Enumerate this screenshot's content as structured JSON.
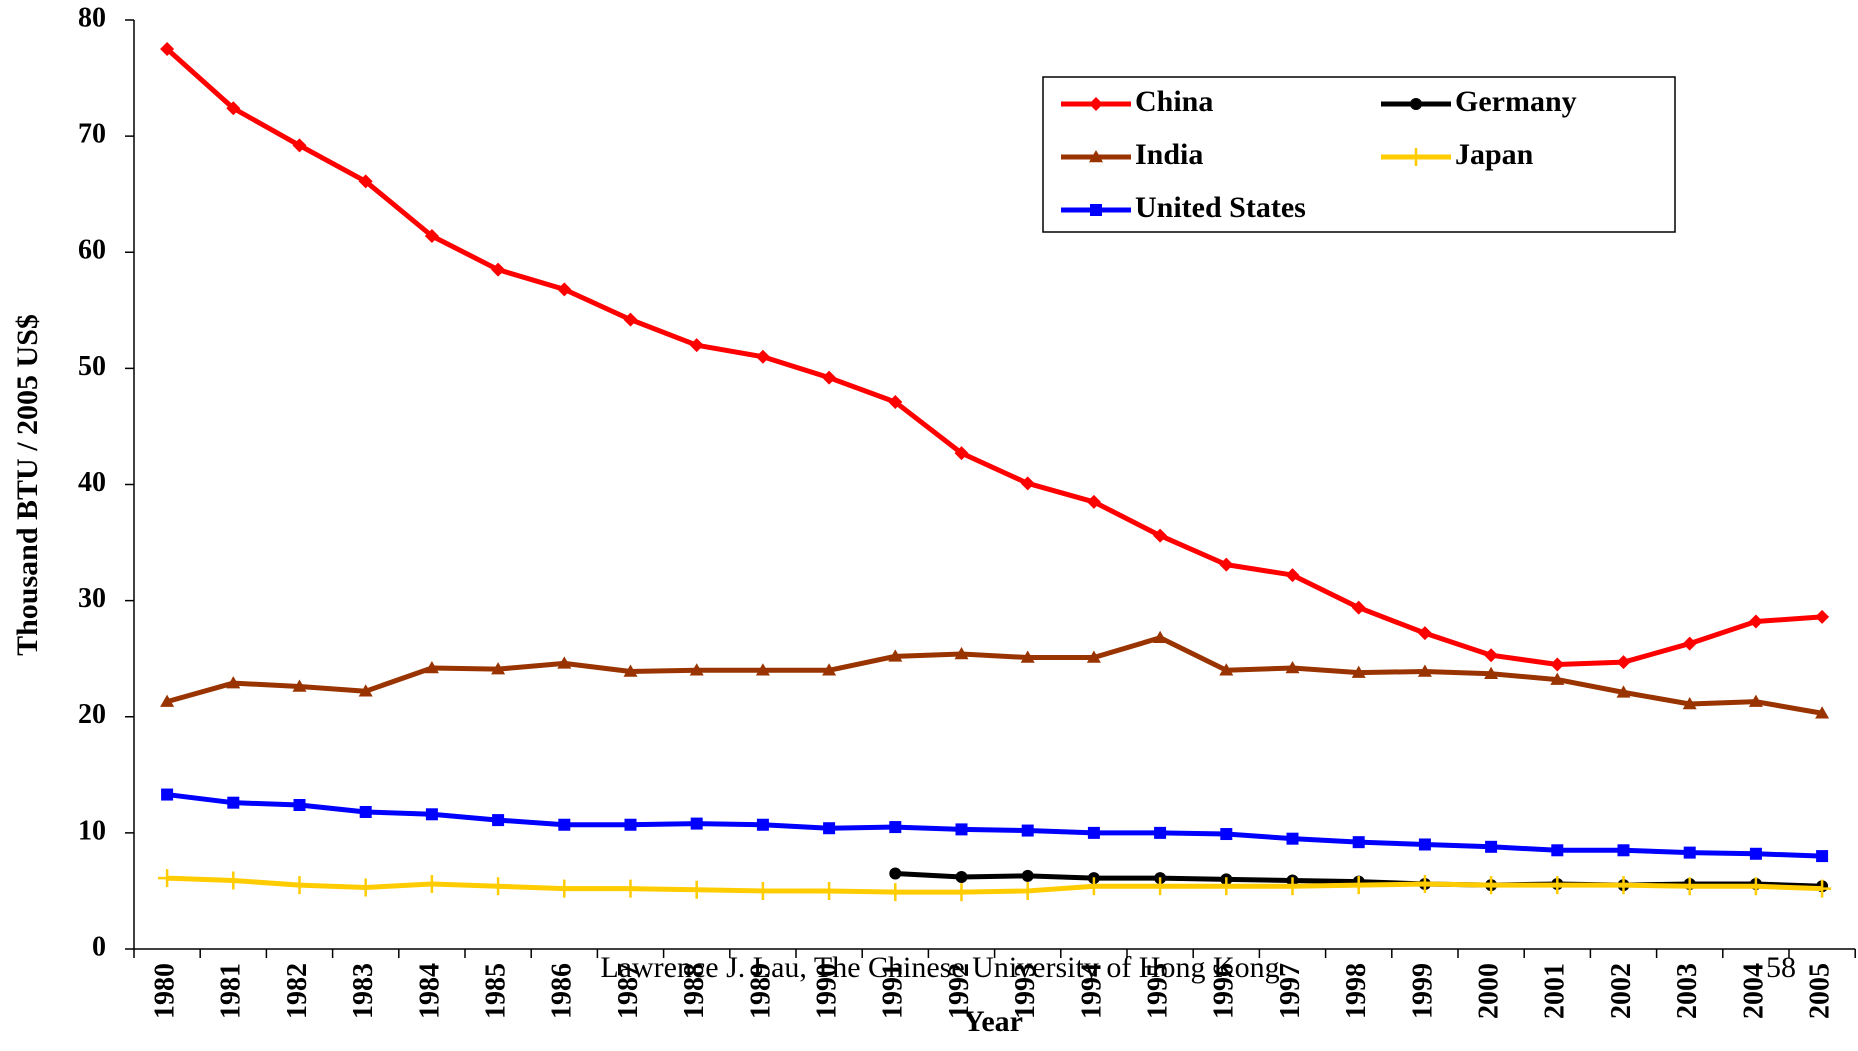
{
  "chart_data": {
    "type": "line",
    "y_label": "Thousand BTU / 2005 US$",
    "x_label": "Year",
    "footer": "Lawrence J. Lau, The Chinese University of Hong Kong",
    "page_number": "58",
    "categories": [
      "1980",
      "1981",
      "1982",
      "1983",
      "1984",
      "1985",
      "1986",
      "1987",
      "1988",
      "1989",
      "1990",
      "1991",
      "1992",
      "1993",
      "1994",
      "1995",
      "1996",
      "1997",
      "1998",
      "1999",
      "2000",
      "2001",
      "2002",
      "2003",
      "2004",
      "2005"
    ],
    "ylim": [
      0,
      80
    ],
    "yticks": [
      0,
      10,
      20,
      30,
      40,
      50,
      60,
      70,
      80
    ],
    "legend": "upper right",
    "series": [
      {
        "name": "China",
        "color": "#ff0000",
        "marker": "diamond",
        "values": [
          77.5,
          72.4,
          69.2,
          66.1,
          61.4,
          58.5,
          56.8,
          54.2,
          52.0,
          51.0,
          49.2,
          47.1,
          42.7,
          40.1,
          38.5,
          35.6,
          33.1,
          32.2,
          29.4,
          27.2,
          25.3,
          24.5,
          24.7,
          26.3,
          28.2,
          28.6
        ]
      },
      {
        "name": "Germany",
        "color": "#000000",
        "marker": "circle",
        "values": [
          null,
          null,
          null,
          null,
          null,
          null,
          null,
          null,
          null,
          null,
          null,
          6.5,
          6.2,
          6.3,
          6.1,
          6.1,
          6.0,
          5.9,
          5.8,
          5.6,
          5.5,
          5.6,
          5.5,
          5.6,
          5.6,
          5.4
        ]
      },
      {
        "name": "India",
        "color": "#993300",
        "marker": "triangle",
        "values": [
          21.3,
          22.9,
          22.6,
          22.2,
          24.2,
          24.1,
          24.6,
          23.9,
          24.0,
          24.0,
          24.0,
          25.2,
          25.4,
          25.1,
          25.1,
          26.8,
          24.0,
          24.2,
          23.8,
          23.9,
          23.7,
          23.2,
          22.1,
          21.1,
          21.3,
          20.3
        ]
      },
      {
        "name": "Japan",
        "color": "#ffcc00",
        "marker": "plus",
        "values": [
          6.1,
          5.9,
          5.5,
          5.3,
          5.6,
          5.4,
          5.2,
          5.2,
          5.1,
          5.0,
          5.0,
          4.9,
          4.9,
          5.0,
          5.4,
          5.4,
          5.4,
          5.4,
          5.5,
          5.6,
          5.5,
          5.5,
          5.5,
          5.4,
          5.4,
          5.2
        ]
      },
      {
        "name": "United States",
        "color": "#0000ff",
        "marker": "square",
        "values": [
          13.3,
          12.6,
          12.4,
          11.8,
          11.6,
          11.1,
          10.7,
          10.7,
          10.8,
          10.7,
          10.4,
          10.5,
          10.3,
          10.2,
          10.0,
          10.0,
          9.9,
          9.5,
          9.2,
          9.0,
          8.8,
          8.5,
          8.5,
          8.3,
          8.2,
          8.0
        ]
      }
    ]
  }
}
